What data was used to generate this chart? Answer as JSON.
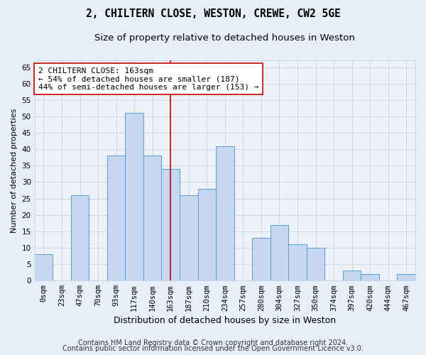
{
  "title": "2, CHILTERN CLOSE, WESTON, CREWE, CW2 5GE",
  "subtitle": "Size of property relative to detached houses in Weston",
  "xlabel": "Distribution of detached houses by size in Weston",
  "ylabel": "Number of detached properties",
  "categories": [
    "0sqm",
    "23sqm",
    "47sqm",
    "70sqm",
    "93sqm",
    "117sqm",
    "140sqm",
    "163sqm",
    "187sqm",
    "210sqm",
    "234sqm",
    "257sqm",
    "280sqm",
    "304sqm",
    "327sqm",
    "350sqm",
    "374sqm",
    "397sqm",
    "420sqm",
    "444sqm",
    "467sqm"
  ],
  "values": [
    8,
    0,
    26,
    0,
    38,
    51,
    38,
    34,
    26,
    28,
    41,
    0,
    13,
    17,
    11,
    10,
    0,
    3,
    2,
    0,
    2
  ],
  "bar_color": "#c5d8f0",
  "bar_edge_color": "#5b9bd5",
  "vline_x_index": 7,
  "vline_color": "#cc0000",
  "annotation_line1": "2 CHILTERN CLOSE: 163sqm",
  "annotation_line2": "← 54% of detached houses are smaller (187)",
  "annotation_line3": "44% of semi-detached houses are larger (153) →",
  "annotation_box_color": "#ffffff",
  "annotation_box_edge": "#cc0000",
  "footer1": "Contains HM Land Registry data © Crown copyright and database right 2024.",
  "footer2": "Contains public sector information licensed under the Open Government Licence v3.0.",
  "ylim": [
    0,
    67
  ],
  "yticks": [
    0,
    5,
    10,
    15,
    20,
    25,
    30,
    35,
    40,
    45,
    50,
    55,
    60,
    65
  ],
  "grid_color": "#cdd6e8",
  "bg_color": "#e8eef8",
  "plot_bg_color": "#edf1f8",
  "title_fontsize": 10.5,
  "subtitle_fontsize": 9.5,
  "xlabel_fontsize": 9,
  "ylabel_fontsize": 8,
  "tick_fontsize": 7.5,
  "annotation_fontsize": 8,
  "footer_fontsize": 7
}
